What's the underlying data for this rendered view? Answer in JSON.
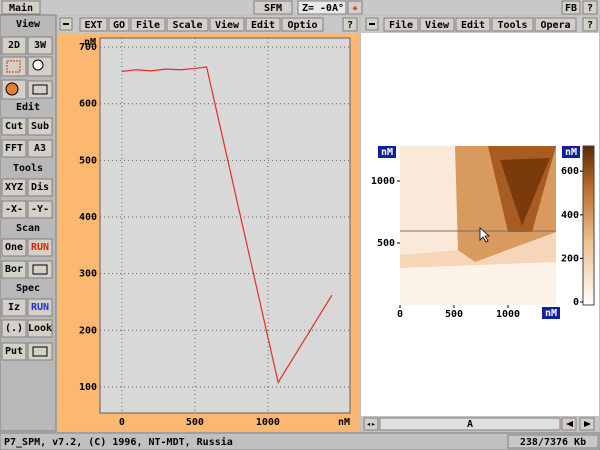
{
  "top_bar": {
    "main": "Main",
    "mode": "SFM",
    "z_label": "Z=",
    "z_value": "-0A°",
    "fb": "FB",
    "help": "?"
  },
  "toolbar": {
    "view": "View",
    "view_buttons": [
      "2D",
      "3W"
    ],
    "edit": "Edit",
    "edit_buttons": [
      "Cut",
      "Sub",
      "FFT",
      "A3"
    ],
    "tools": "Tools",
    "tools_buttons": [
      "XYZ",
      "Dis",
      "-X-",
      "-Y-"
    ],
    "scan": "Scan",
    "scan_buttons": [
      "One",
      "RUN",
      "Bor"
    ],
    "spec": "Spec",
    "spec_buttons": [
      "Iz",
      "RUN",
      "(.)",
      "Look",
      "Put"
    ]
  },
  "left_window": {
    "menu": [
      "EXT",
      "GO",
      "File",
      "Scale",
      "View",
      "Edit",
      "Optio"
    ],
    "help": "?"
  },
  "chart_data": {
    "type": "line",
    "color": "#e03020",
    "grid": true,
    "xlabel": "nM",
    "ylabel": "nM",
    "x": [
      0,
      100,
      200,
      300,
      400,
      500,
      580,
      1070,
      1438
    ],
    "values": [
      657,
      660,
      658,
      661,
      660,
      662,
      665,
      108,
      262
    ],
    "xlim": [
      -150,
      1562
    ],
    "ylim": [
      54,
      716
    ],
    "xticks": [
      0,
      500,
      1000
    ],
    "yticks": [
      100,
      200,
      300,
      400,
      500,
      600,
      700
    ]
  },
  "right_window": {
    "menu": [
      "File",
      "View",
      "Edit",
      "Tools",
      "Opera"
    ],
    "help": "?",
    "scroll_label": "A",
    "image": {
      "y_unit": "nM",
      "x_unit": "nM",
      "colorbar_unit": "nM",
      "xticks": [
        0,
        500,
        1000
      ],
      "yticks": [
        500,
        1000
      ],
      "colorbar_ticks": [
        0,
        200,
        400,
        600
      ]
    }
  },
  "status_bar": {
    "left": "P7_SPM, v7.2, (C) 1996, NT-MDT, Russia",
    "right": "238/7376 Kb"
  }
}
